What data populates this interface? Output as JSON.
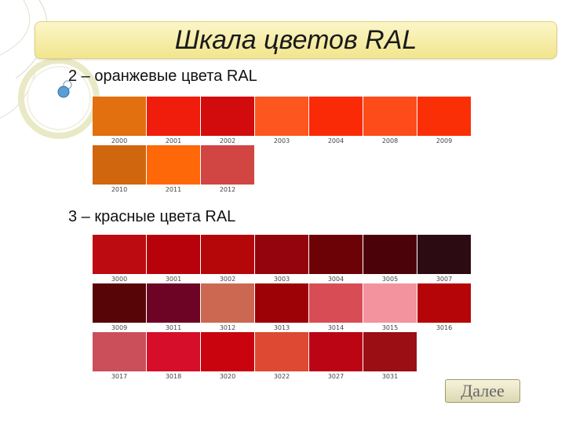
{
  "title": "Шкала цветов RAL",
  "orange": {
    "heading": "2 – оранжевые цвета RAL",
    "rows": [
      [
        {
          "code": "2000",
          "color": "#e2700f"
        },
        {
          "code": "2001",
          "color": "#f01d0c"
        },
        {
          "code": "2002",
          "color": "#d20b0d"
        },
        {
          "code": "2003",
          "color": "#fd561e"
        },
        {
          "code": "2004",
          "color": "#fa2a06"
        },
        {
          "code": "2008",
          "color": "#fd4c1a"
        },
        {
          "code": "2009",
          "color": "#fa2f06"
        }
      ],
      [
        {
          "code": "2010",
          "color": "#d0660e"
        },
        {
          "code": "2011",
          "color": "#fe6808"
        },
        {
          "code": "2012",
          "color": "#d14543"
        }
      ]
    ]
  },
  "red": {
    "heading": "3 – красные цвета RAL",
    "rows": [
      [
        {
          "code": "3000",
          "color": "#bc0c11"
        },
        {
          "code": "3001",
          "color": "#b7020c"
        },
        {
          "code": "3002",
          "color": "#b50609"
        },
        {
          "code": "3003",
          "color": "#93040c"
        },
        {
          "code": "3004",
          "color": "#6c0206"
        },
        {
          "code": "3005",
          "color": "#4c0209"
        },
        {
          "code": "3007",
          "color": "#2c0b13"
        }
      ],
      [
        {
          "code": "3009",
          "color": "#570507"
        },
        {
          "code": "3011",
          "color": "#6e0425"
        },
        {
          "code": "3012",
          "color": "#cc6852"
        },
        {
          "code": "3013",
          "color": "#9d0207"
        },
        {
          "code": "3014",
          "color": "#d84d55"
        },
        {
          "code": "3015",
          "color": "#f3939e"
        },
        {
          "code": "3016",
          "color": "#b60509"
        }
      ],
      [
        {
          "code": "3017",
          "color": "#ca4f5b"
        },
        {
          "code": "3018",
          "color": "#d70e2a"
        },
        {
          "code": "3020",
          "color": "#c9040f"
        },
        {
          "code": "3022",
          "color": "#dd4933"
        },
        {
          "code": "3027",
          "color": "#bb0514"
        },
        {
          "code": "3031",
          "color": "#9b0e14"
        }
      ]
    ]
  },
  "next_button": "Далее"
}
